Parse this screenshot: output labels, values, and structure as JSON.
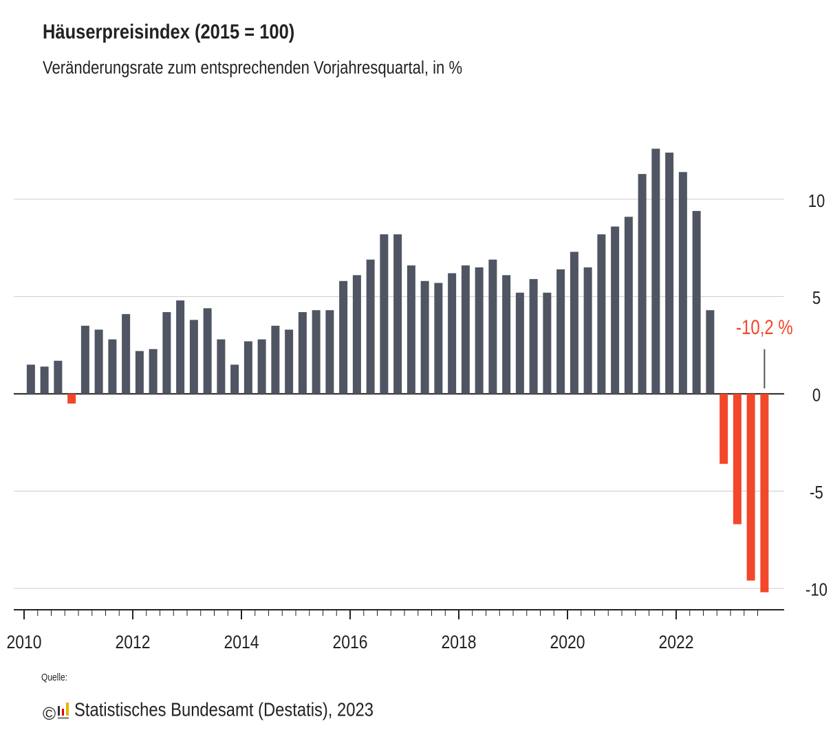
{
  "chart_data": {
    "type": "bar",
    "title": "Häuserpreisindex (2015 = 100)",
    "subtitle": "Veränderungsrate zum entsprechenden Vorjahresquartal, in %",
    "categories": [
      "2010",
      null,
      null,
      null,
      null,
      null,
      null,
      null,
      "2012",
      null,
      null,
      null,
      null,
      null,
      null,
      null,
      "2014",
      null,
      null,
      null,
      null,
      null,
      null,
      null,
      "2016",
      null,
      null,
      null,
      null,
      null,
      null,
      null,
      "2018",
      null,
      null,
      null,
      null,
      null,
      null,
      null,
      "2020",
      null,
      null,
      null,
      null,
      null,
      null,
      null,
      "2022",
      null,
      null,
      null,
      null,
      null,
      null
    ],
    "values": [
      1.5,
      1.4,
      1.7,
      -0.5,
      3.5,
      3.3,
      2.8,
      4.1,
      2.2,
      2.3,
      4.2,
      4.8,
      3.8,
      4.4,
      2.8,
      1.5,
      2.7,
      2.8,
      3.5,
      3.3,
      4.2,
      4.3,
      4.3,
      5.8,
      6.1,
      6.9,
      8.2,
      8.2,
      6.6,
      5.8,
      5.7,
      6.2,
      6.6,
      6.5,
      6.9,
      6.1,
      5.2,
      5.9,
      5.2,
      6.4,
      7.3,
      6.5,
      8.2,
      8.6,
      9.1,
      11.3,
      12.6,
      12.4,
      11.4,
      9.4,
      4.3,
      -3.6,
      -6.7,
      -9.6,
      -10.2
    ],
    "value_labels": [
      null,
      null,
      null,
      null,
      null,
      null,
      null,
      null,
      null,
      null,
      null,
      null,
      null,
      null,
      null,
      null,
      null,
      null,
      null,
      null,
      null,
      null,
      null,
      null,
      null,
      null,
      null,
      null,
      null,
      null,
      null,
      null,
      null,
      null,
      null,
      null,
      null,
      null,
      null,
      null,
      null,
      null,
      null,
      null,
      null,
      null,
      null,
      null,
      null,
      null,
      null,
      null,
      null,
      null,
      "-10,2 %"
    ],
    "color": "#4f5562",
    "negative_color": "#f2472a",
    "ylim": [
      -11.1,
      13
    ],
    "yticks": [
      -10,
      -5,
      0,
      5,
      10
    ],
    "grid": true,
    "source_label": "Quelle:",
    "source": "Statistisches Bundesamt (Destatis), 2023"
  }
}
